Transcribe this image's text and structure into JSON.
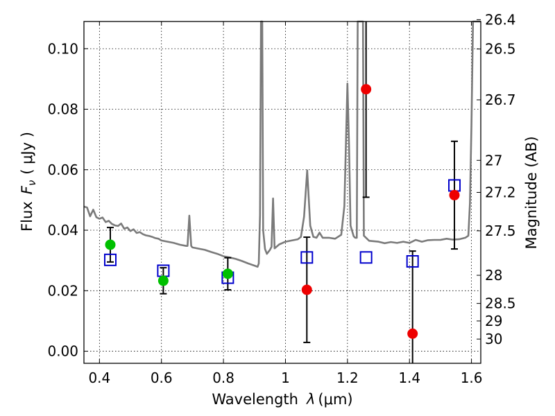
{
  "chart_data": {
    "type": "scatter",
    "xlabel": "Wavelength",
    "xlabel_symbol": "λ",
    "xlabel_unit": "(μm)",
    "ylabel": "Flux",
    "ylabel_symbol": "F",
    "ylabel_subscript": "ν",
    "ylabel_unit": "( μJy )",
    "ylabel_right": "Magnitude (AB)",
    "xlim": [
      0.35,
      1.63
    ],
    "ylim": [
      -0.004,
      0.109
    ],
    "grid": true,
    "x_ticks": [
      0.4,
      0.6,
      0.8,
      1.0,
      1.2,
      1.4,
      1.6
    ],
    "x_tick_labels": [
      "0.4",
      "0.6",
      "0.8",
      "1",
      "1.2",
      "1.4",
      "1.6"
    ],
    "y_ticks": [
      0.0,
      0.02,
      0.04,
      0.06,
      0.08,
      0.1
    ],
    "y_tick_labels": [
      "0.00",
      "0.02",
      "0.04",
      "0.06",
      "0.08",
      "0.10"
    ],
    "right_ticks": [
      {
        "label": "26.4",
        "flux": 0.1096
      },
      {
        "label": "26.5",
        "flux": 0.0999
      },
      {
        "label": "26.7",
        "flux": 0.0831
      },
      {
        "label": "27",
        "flux": 0.0631
      },
      {
        "label": "27.2",
        "flux": 0.0525
      },
      {
        "label": "27.5",
        "flux": 0.0398
      },
      {
        "label": "28",
        "flux": 0.0251
      },
      {
        "label": "28.5",
        "flux": 0.0158
      },
      {
        "label": "29",
        "flux": 0.01
      },
      {
        "label": "30",
        "flux": 0.004
      }
    ],
    "series": [
      {
        "marker": "circle",
        "color": "#00c000",
        "points": [
          {
            "x": 0.435,
            "y": 0.0352,
            "err": 0.0057
          },
          {
            "x": 0.606,
            "y": 0.0233,
            "err": 0.0043
          },
          {
            "x": 0.814,
            "y": 0.0256,
            "err": 0.0053
          }
        ]
      },
      {
        "marker": "circle",
        "color": "#ee0000",
        "points": [
          {
            "x": 1.069,
            "y": 0.0203,
            "err": 0.0174
          },
          {
            "x": 1.26,
            "y": 0.0866,
            "err": 0.0357
          },
          {
            "x": 1.41,
            "y": 0.0058,
            "err": 0.0273
          },
          {
            "x": 1.545,
            "y": 0.0516,
            "err": 0.0178
          }
        ]
      },
      {
        "marker": "square-open",
        "color": "#0000cc",
        "points": [
          {
            "x": 0.435,
            "y": 0.0302
          },
          {
            "x": 0.606,
            "y": 0.0266
          },
          {
            "x": 0.814,
            "y": 0.0243
          },
          {
            "x": 1.069,
            "y": 0.031
          },
          {
            "x": 1.26,
            "y": 0.031
          },
          {
            "x": 1.41,
            "y": 0.0297
          },
          {
            "x": 1.545,
            "y": 0.0548
          }
        ]
      },
      {
        "type": "line",
        "color": "#7a7a7a",
        "points": [
          [
            0.35,
            0.0478
          ],
          [
            0.36,
            0.0475
          ],
          [
            0.37,
            0.0446
          ],
          [
            0.38,
            0.0468
          ],
          [
            0.39,
            0.0443
          ],
          [
            0.4,
            0.0438
          ],
          [
            0.41,
            0.0442
          ],
          [
            0.42,
            0.0427
          ],
          [
            0.43,
            0.0431
          ],
          [
            0.44,
            0.0421
          ],
          [
            0.45,
            0.0416
          ],
          [
            0.46,
            0.0414
          ],
          [
            0.47,
            0.0422
          ],
          [
            0.48,
            0.0405
          ],
          [
            0.49,
            0.0409
          ],
          [
            0.5,
            0.0397
          ],
          [
            0.51,
            0.0403
          ],
          [
            0.52,
            0.0391
          ],
          [
            0.53,
            0.0394
          ],
          [
            0.54,
            0.0387
          ],
          [
            0.55,
            0.0383
          ],
          [
            0.56,
            0.0381
          ],
          [
            0.57,
            0.0378
          ],
          [
            0.58,
            0.0374
          ],
          [
            0.59,
            0.0372
          ],
          [
            0.6,
            0.0366
          ],
          [
            0.62,
            0.0362
          ],
          [
            0.64,
            0.0358
          ],
          [
            0.66,
            0.0352
          ],
          [
            0.68,
            0.0348
          ],
          [
            0.684,
            0.0348
          ],
          [
            0.69,
            0.0448
          ],
          [
            0.696,
            0.0348
          ],
          [
            0.7,
            0.0343
          ],
          [
            0.72,
            0.0339
          ],
          [
            0.74,
            0.0335
          ],
          [
            0.76,
            0.0328
          ],
          [
            0.78,
            0.0322
          ],
          [
            0.8,
            0.0314
          ],
          [
            0.82,
            0.031
          ],
          [
            0.84,
            0.0305
          ],
          [
            0.86,
            0.0298
          ],
          [
            0.88,
            0.029
          ],
          [
            0.9,
            0.0283
          ],
          [
            0.91,
            0.0279
          ],
          [
            0.914,
            0.029
          ],
          [
            0.918,
            0.045
          ],
          [
            0.921,
            0.109
          ],
          [
            0.925,
            0.109
          ],
          [
            0.928,
            0.04
          ],
          [
            0.934,
            0.0338
          ],
          [
            0.94,
            0.0322
          ],
          [
            0.95,
            0.0335
          ],
          [
            0.955,
            0.0345
          ],
          [
            0.96,
            0.0505
          ],
          [
            0.965,
            0.034
          ],
          [
            0.98,
            0.0353
          ],
          [
            1.0,
            0.0362
          ],
          [
            1.02,
            0.0366
          ],
          [
            1.04,
            0.037
          ],
          [
            1.05,
            0.0378
          ],
          [
            1.06,
            0.0445
          ],
          [
            1.07,
            0.0598
          ],
          [
            1.08,
            0.0415
          ],
          [
            1.09,
            0.0378
          ],
          [
            1.1,
            0.0375
          ],
          [
            1.11,
            0.0392
          ],
          [
            1.12,
            0.0375
          ],
          [
            1.14,
            0.0375
          ],
          [
            1.16,
            0.0372
          ],
          [
            1.18,
            0.0385
          ],
          [
            1.19,
            0.048
          ],
          [
            1.195,
            0.0683
          ],
          [
            1.2,
            0.0885
          ],
          [
            1.205,
            0.0683
          ],
          [
            1.21,
            0.0415
          ],
          [
            1.22,
            0.038
          ],
          [
            1.225,
            0.0375
          ],
          [
            1.23,
            0.0375
          ],
          [
            1.233,
            0.109
          ],
          [
            1.25,
            0.109
          ],
          [
            1.253,
            0.0382
          ],
          [
            1.27,
            0.0365
          ],
          [
            1.3,
            0.0362
          ],
          [
            1.32,
            0.0357
          ],
          [
            1.34,
            0.0361
          ],
          [
            1.36,
            0.0358
          ],
          [
            1.38,
            0.0362
          ],
          [
            1.4,
            0.0358
          ],
          [
            1.42,
            0.0368
          ],
          [
            1.44,
            0.0362
          ],
          [
            1.46,
            0.0367
          ],
          [
            1.48,
            0.0368
          ],
          [
            1.5,
            0.0368
          ],
          [
            1.52,
            0.0372
          ],
          [
            1.54,
            0.0369
          ],
          [
            1.56,
            0.037
          ],
          [
            1.58,
            0.0375
          ],
          [
            1.59,
            0.0382
          ],
          [
            1.595,
            0.049
          ],
          [
            1.6,
            0.075
          ],
          [
            1.605,
            0.109
          ],
          [
            1.63,
            0.109
          ]
        ]
      }
    ]
  }
}
